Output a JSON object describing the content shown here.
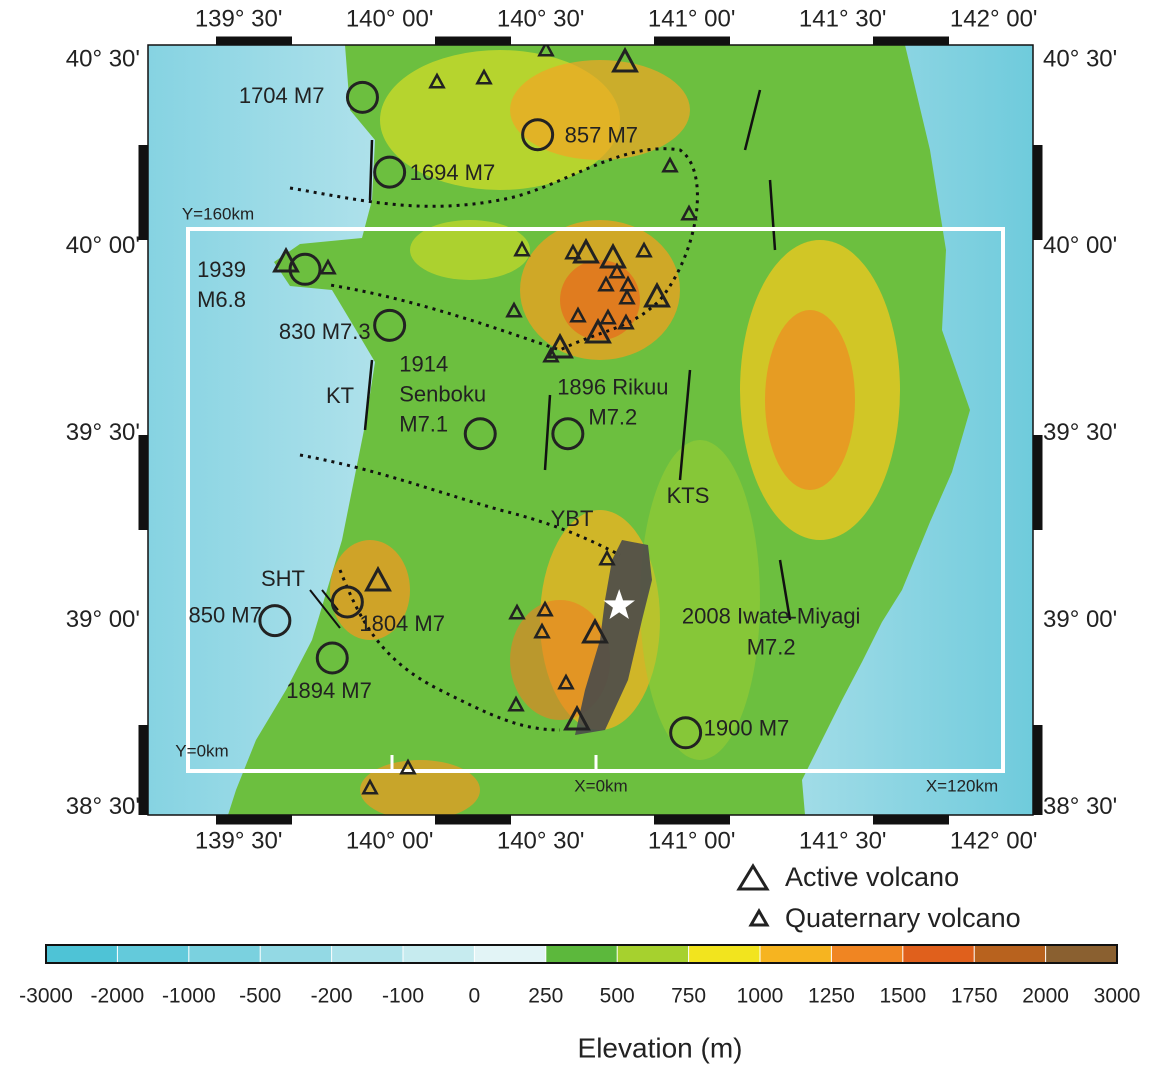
{
  "map": {
    "lon_range": [
      139.2,
      142.13
    ],
    "lat_range": [
      38.48,
      40.54
    ],
    "lon_ticks": [
      {
        "value": 139.5,
        "label": "139° 30'"
      },
      {
        "value": 140.0,
        "label": "140° 00'"
      },
      {
        "value": 140.5,
        "label": "140° 30'"
      },
      {
        "value": 141.0,
        "label": "141° 00'"
      },
      {
        "value": 141.5,
        "label": "141° 30'"
      },
      {
        "value": 142.0,
        "label": "142° 00'"
      }
    ],
    "lat_ticks": [
      {
        "value": 40.5,
        "label": "40° 30'"
      },
      {
        "value": 40.0,
        "label": "40° 00'"
      },
      {
        "value": 39.5,
        "label": "39° 30'"
      },
      {
        "value": 39.0,
        "label": "39° 00'"
      },
      {
        "value": 38.5,
        "label": "38° 30'"
      }
    ],
    "earthquakes": [
      {
        "label": [
          "1704 M7"
        ],
        "lon": 139.91,
        "lat": 40.4
      },
      {
        "label": [
          "857 M7"
        ],
        "lon": 140.49,
        "lat": 40.3
      },
      {
        "label": [
          "1694 M7"
        ],
        "lon": 140.0,
        "lat": 40.2
      },
      {
        "label": [
          "1939",
          "M6.8"
        ],
        "lon": 139.72,
        "lat": 39.94
      },
      {
        "label": [
          "830 M7.3"
        ],
        "lon": 140.0,
        "lat": 39.79
      },
      {
        "label": [
          "1914",
          "Senboku",
          "M7.1"
        ],
        "lon": 140.3,
        "lat": 39.5
      },
      {
        "label": [
          "1896 Rikuu",
          "M7.2"
        ],
        "lon": 140.59,
        "lat": 39.5
      },
      {
        "label": [
          "850 M7"
        ],
        "lon": 139.62,
        "lat": 39.0
      },
      {
        "label": [
          "1804 M7"
        ],
        "lon": 139.86,
        "lat": 39.05
      },
      {
        "label": [
          "1894 M7"
        ],
        "lon": 139.81,
        "lat": 38.9
      },
      {
        "label": [
          "1900 M7"
        ],
        "lon": 140.98,
        "lat": 38.7
      }
    ],
    "mainshock": {
      "label": [
        "2008 Iwate-Miyagi",
        "M7.2"
      ],
      "lon": 140.76,
      "lat": 39.04
    },
    "annotations": [
      "KT",
      "YBT",
      "KTS",
      "SHT",
      "Y=160km",
      "Y=0km",
      "X=0km",
      "X=120km"
    ]
  },
  "legend": {
    "items": [
      "Active volcano",
      "Quaternary volcano"
    ]
  },
  "colorbar": {
    "title": "Elevation (m)",
    "ticks": [
      -3000,
      -2000,
      -1000,
      -500,
      -200,
      -100,
      0,
      250,
      500,
      750,
      1000,
      1250,
      1500,
      1750,
      2000,
      3000
    ],
    "colors": [
      "#4ec3d6",
      "#63cadb",
      "#7ad1df",
      "#93d9e4",
      "#acE2ea",
      "#c6ebef",
      "#e2f4f6",
      "#5cb83c",
      "#a6d12e",
      "#f2e41e",
      "#f6b420",
      "#f08522",
      "#e0601c",
      "#b8621e",
      "#8a6030",
      "#6b5a48"
    ]
  }
}
